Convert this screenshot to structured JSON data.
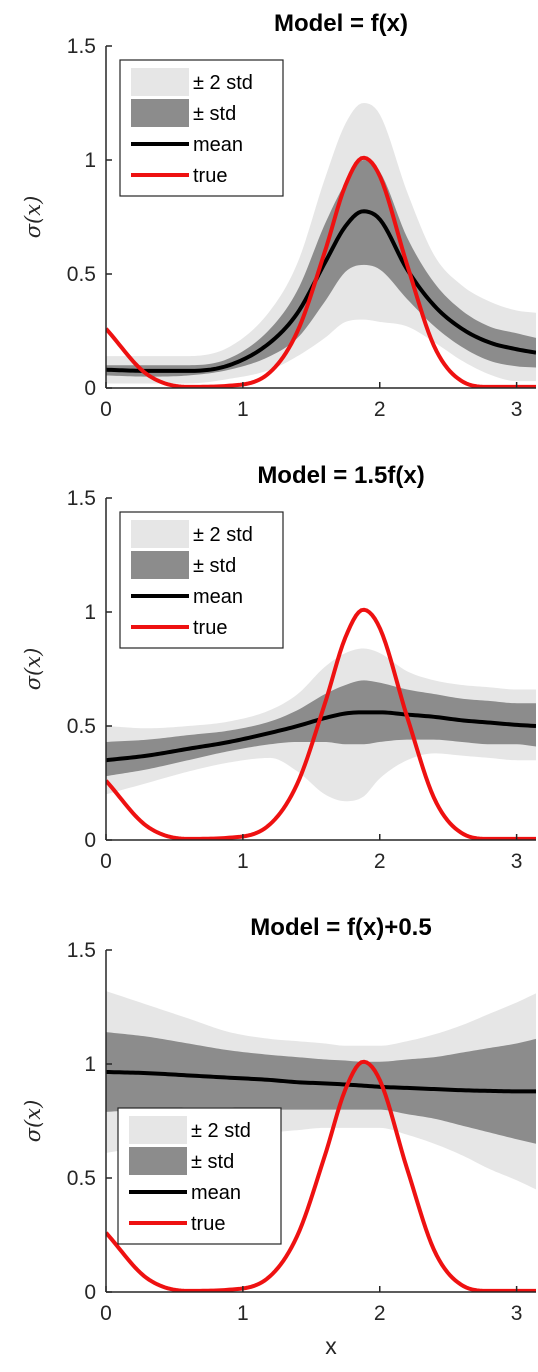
{
  "chart_data": [
    {
      "type": "area",
      "title": "Model = f(x)",
      "ylabel": "σ(x)",
      "xlabel": "",
      "xlim": [
        0,
        3.14159
      ],
      "ylim": [
        0,
        1.5
      ],
      "xticks": [
        "0",
        "1",
        "2",
        "3"
      ],
      "yticks": [
        "0",
        "0.5",
        "1",
        "1.5"
      ],
      "grid": false,
      "legend_position": "top-left",
      "legend": [
        "± 2 std",
        "± std",
        "mean",
        "true"
      ],
      "x": [
        0,
        0.3,
        0.6,
        0.9,
        1.2,
        1.4,
        1.6,
        1.75,
        1.88,
        2.0,
        2.2,
        2.4,
        2.6,
        2.8,
        3.0,
        3.14159
      ],
      "series": [
        {
          "name": "mean",
          "values": [
            0.08,
            0.075,
            0.075,
            0.1,
            0.2,
            0.33,
            0.55,
            0.71,
            0.775,
            0.74,
            0.52,
            0.36,
            0.26,
            0.2,
            0.17,
            0.155
          ]
        },
        {
          "name": "± std lower",
          "values": [
            0.055,
            0.05,
            0.055,
            0.08,
            0.14,
            0.22,
            0.38,
            0.51,
            0.54,
            0.52,
            0.39,
            0.27,
            0.18,
            0.12,
            0.095,
            0.09
          ]
        },
        {
          "name": "± std upper",
          "values": [
            0.1,
            0.1,
            0.1,
            0.13,
            0.26,
            0.43,
            0.72,
            0.9,
            1.0,
            0.95,
            0.66,
            0.46,
            0.34,
            0.27,
            0.24,
            0.22
          ]
        },
        {
          "name": "± 2 std lower",
          "values": [
            0.02,
            0.02,
            0.02,
            0.04,
            0.08,
            0.14,
            0.22,
            0.29,
            0.3,
            0.29,
            0.27,
            0.2,
            0.12,
            0.06,
            0.03,
            0.03
          ]
        },
        {
          "name": "± 2 std upper",
          "values": [
            0.14,
            0.14,
            0.14,
            0.18,
            0.34,
            0.55,
            0.92,
            1.16,
            1.25,
            1.2,
            0.86,
            0.58,
            0.45,
            0.38,
            0.34,
            0.33
          ]
        },
        {
          "name": "true",
          "values": [
            0.26,
            0.06,
            0.005,
            0.01,
            0.07,
            0.25,
            0.6,
            0.89,
            1.01,
            0.93,
            0.54,
            0.18,
            0.03,
            0.005,
            0.005,
            0.005
          ]
        }
      ]
    },
    {
      "type": "area",
      "title": "Model = 1.5f(x)",
      "ylabel": "σ(x)",
      "xlabel": "",
      "xlim": [
        0,
        3.14159
      ],
      "ylim": [
        0,
        1.5
      ],
      "xticks": [
        "0",
        "1",
        "2",
        "3"
      ],
      "yticks": [
        "0",
        "0.5",
        "1",
        "1.5"
      ],
      "grid": false,
      "legend_position": "top-left",
      "legend": [
        "± 2 std",
        "± std",
        "mean",
        "true"
      ],
      "x": [
        0,
        0.3,
        0.6,
        0.9,
        1.2,
        1.4,
        1.6,
        1.75,
        1.88,
        2.0,
        2.2,
        2.4,
        2.6,
        2.8,
        3.0,
        3.14159
      ],
      "series": [
        {
          "name": "mean",
          "values": [
            0.35,
            0.37,
            0.4,
            0.43,
            0.47,
            0.5,
            0.535,
            0.555,
            0.56,
            0.56,
            0.55,
            0.54,
            0.525,
            0.515,
            0.505,
            0.5
          ]
        },
        {
          "name": "± std lower",
          "values": [
            0.28,
            0.31,
            0.35,
            0.39,
            0.42,
            0.43,
            0.43,
            0.42,
            0.42,
            0.43,
            0.44,
            0.44,
            0.43,
            0.42,
            0.42,
            0.41
          ]
        },
        {
          "name": "± std upper",
          "values": [
            0.43,
            0.44,
            0.46,
            0.48,
            0.52,
            0.57,
            0.64,
            0.68,
            0.7,
            0.69,
            0.66,
            0.64,
            0.62,
            0.61,
            0.6,
            0.6
          ]
        },
        {
          "name": "± 2 std lower",
          "values": [
            0.2,
            0.25,
            0.3,
            0.34,
            0.36,
            0.3,
            0.2,
            0.17,
            0.19,
            0.27,
            0.35,
            0.38,
            0.37,
            0.36,
            0.35,
            0.35
          ]
        },
        {
          "name": "± 2 std upper",
          "values": [
            0.5,
            0.49,
            0.5,
            0.52,
            0.57,
            0.64,
            0.76,
            0.82,
            0.84,
            0.82,
            0.74,
            0.7,
            0.68,
            0.67,
            0.66,
            0.66
          ]
        },
        {
          "name": "true",
          "values": [
            0.26,
            0.06,
            0.005,
            0.01,
            0.07,
            0.25,
            0.6,
            0.89,
            1.01,
            0.93,
            0.54,
            0.18,
            0.03,
            0.005,
            0.005,
            0.005
          ]
        }
      ]
    },
    {
      "type": "area",
      "title": "Model = f(x)+0.5",
      "ylabel": "σ(x)",
      "xlabel": "x",
      "xlim": [
        0,
        3.14159
      ],
      "ylim": [
        0,
        1.5
      ],
      "xticks": [
        "0",
        "1",
        "2",
        "3"
      ],
      "yticks": [
        "0",
        "0.5",
        "1",
        "1.5"
      ],
      "grid": false,
      "legend_position": "bottom-left",
      "legend": [
        "± 2 std",
        "± std",
        "mean",
        "true"
      ],
      "x": [
        0,
        0.3,
        0.6,
        0.9,
        1.2,
        1.4,
        1.6,
        1.75,
        1.88,
        2.0,
        2.2,
        2.4,
        2.6,
        2.8,
        3.0,
        3.14159
      ],
      "series": [
        {
          "name": "mean",
          "values": [
            0.965,
            0.96,
            0.95,
            0.94,
            0.93,
            0.92,
            0.915,
            0.91,
            0.905,
            0.9,
            0.895,
            0.89,
            0.885,
            0.882,
            0.88,
            0.88
          ]
        },
        {
          "name": "± std lower",
          "values": [
            0.79,
            0.8,
            0.81,
            0.81,
            0.8,
            0.8,
            0.8,
            0.8,
            0.8,
            0.8,
            0.78,
            0.76,
            0.73,
            0.7,
            0.67,
            0.65
          ]
        },
        {
          "name": "± std upper",
          "values": [
            1.14,
            1.12,
            1.09,
            1.06,
            1.04,
            1.03,
            1.02,
            1.015,
            1.01,
            1.01,
            1.02,
            1.03,
            1.05,
            1.07,
            1.09,
            1.11
          ]
        },
        {
          "name": "± 2 std lower",
          "values": [
            0.61,
            0.64,
            0.67,
            0.69,
            0.7,
            0.71,
            0.72,
            0.72,
            0.72,
            0.72,
            0.69,
            0.65,
            0.6,
            0.54,
            0.49,
            0.45
          ]
        },
        {
          "name": "± 2 std upper",
          "values": [
            1.32,
            1.26,
            1.2,
            1.14,
            1.11,
            1.1,
            1.09,
            1.08,
            1.08,
            1.08,
            1.1,
            1.13,
            1.17,
            1.22,
            1.27,
            1.31
          ]
        },
        {
          "name": "true",
          "values": [
            0.26,
            0.06,
            0.005,
            0.01,
            0.07,
            0.25,
            0.6,
            0.89,
            1.01,
            0.93,
            0.54,
            0.18,
            0.03,
            0.005,
            0.005,
            0.005
          ]
        }
      ]
    }
  ]
}
